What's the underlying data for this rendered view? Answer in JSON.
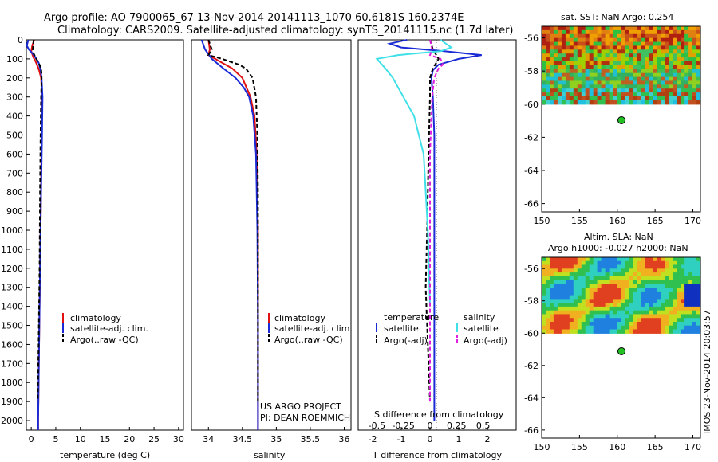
{
  "header": {
    "line1": "Argo profile: AO 7900065_67 13-Nov-2014 20141113_1070 60.6181S 160.2374E",
    "line2": "Climatology: CARS2009. Satellite-adjusted climatology: synTS_20141115.nc (1.7d later)"
  },
  "colors": {
    "climatology": "#e01010",
    "satellite": "#1a2bd6",
    "argo": "#000000",
    "sat_salinity": "#40e0e8",
    "argo_salinity": "#e020e0"
  },
  "panels": {
    "temperature": {
      "xlabel": "temperature (deg C)",
      "legend": [
        "climatology",
        "satellite-adj. clim.",
        "Argo(..raw -QC)"
      ]
    },
    "salinity": {
      "xlabel": "salinity",
      "legend": [
        "climatology",
        "satellite-adj. clim.",
        "Argo(..raw -QC)"
      ],
      "note1": "US ARGO PROJECT",
      "note2": "PI: DEAN ROEMMICH"
    },
    "difference": {
      "xlabel": "T difference from climatology",
      "s_label": "S difference from climatology",
      "legend_t_title": "temperature",
      "legend_s_title": "salinity",
      "legend_t": [
        "satellite",
        "Argo(-adj)"
      ],
      "legend_s": [
        "satellite",
        "Argo(-adj)"
      ]
    },
    "sst_map": {
      "title": "sat. SST: NaN Argo: 0.254"
    },
    "sla_map": {
      "title1": "Altim. SLA: NaN",
      "title2": "Argo h1000: -0.027 h2000: NaN"
    }
  },
  "footer_stamp": "IMOS 23-Nov-2014 20:03:57",
  "chart_data": [
    {
      "type": "line",
      "name": "temperature",
      "xlim": [
        -1,
        31
      ],
      "ylim": [
        0,
        2050
      ],
      "y_reversed": true,
      "xticks": [
        0,
        5,
        10,
        15,
        20,
        25,
        30
      ],
      "yticks": [
        0,
        100,
        200,
        300,
        400,
        500,
        600,
        700,
        800,
        900,
        1000,
        1100,
        1200,
        1300,
        1400,
        1500,
        1600,
        1700,
        1800,
        1900,
        2000
      ],
      "series": [
        {
          "name": "climatology",
          "depth": [
            0,
            30,
            60,
            90,
            120,
            160,
            200,
            300,
            500,
            800,
            1200,
            1600,
            2000,
            2050
          ],
          "values": [
            0.6,
            0.2,
            0.0,
            0.4,
            1.0,
            1.6,
            2.0,
            2.2,
            2.1,
            2.0,
            1.8,
            1.6,
            1.4,
            1.4
          ]
        },
        {
          "name": "satellite-adj. clim.",
          "depth": [
            0,
            30,
            50,
            70,
            90,
            120,
            160,
            200,
            300,
            500,
            800,
            1200,
            1600,
            2000,
            2050
          ],
          "values": [
            -0.6,
            -0.9,
            -0.5,
            0.2,
            0.8,
            1.5,
            1.9,
            2.1,
            2.3,
            2.2,
            2.0,
            1.8,
            1.6,
            1.4,
            1.4
          ]
        },
        {
          "name": "Argo(..raw -QC)",
          "depth": [
            0,
            30,
            60,
            90,
            120,
            150,
            180,
            220,
            300,
            500,
            800,
            1200,
            1600,
            1900
          ],
          "values": [
            0.5,
            0.4,
            0.3,
            0.8,
            1.5,
            2.0,
            2.1,
            2.1,
            2.0,
            1.9,
            1.8,
            1.7,
            1.5,
            1.3
          ]
        }
      ]
    },
    {
      "type": "line",
      "name": "salinity",
      "xlim": [
        33.75,
        36.1
      ],
      "ylim": [
        0,
        2050
      ],
      "y_reversed": true,
      "xticks": [
        34,
        34.5,
        35,
        35.5,
        36
      ],
      "xtick_labels": [
        "34",
        "34.5",
        "35",
        "35.5",
        "36"
      ],
      "series": [
        {
          "name": "climatology",
          "depth": [
            0,
            50,
            80,
            100,
            150,
            200,
            300,
            400,
            600,
            1000,
            1500,
            2000,
            2050
          ],
          "values": [
            34.0,
            34.02,
            34.0,
            34.1,
            34.35,
            34.5,
            34.62,
            34.68,
            34.71,
            34.73,
            34.73,
            34.73,
            34.73
          ]
        },
        {
          "name": "satellite-adj. clim.",
          "depth": [
            0,
            50,
            100,
            150,
            200,
            250,
            300,
            400,
            600,
            1000,
            1500,
            2000,
            2050
          ],
          "values": [
            33.9,
            33.95,
            34.05,
            34.22,
            34.4,
            34.52,
            34.6,
            34.66,
            34.7,
            34.72,
            34.73,
            34.73,
            34.73
          ]
        },
        {
          "name": "Argo(..raw -QC)",
          "depth": [
            0,
            50,
            80,
            100,
            130,
            150,
            200,
            300,
            500,
            800,
            1200,
            1600,
            1900
          ],
          "values": [
            34.0,
            34.05,
            34.0,
            34.2,
            34.45,
            34.55,
            34.65,
            34.7,
            34.72,
            34.73,
            34.73,
            34.73,
            34.73
          ]
        }
      ]
    },
    {
      "type": "line",
      "name": "difference",
      "xlim": [
        -2.5,
        3.0
      ],
      "ylim": [
        0,
        2050
      ],
      "y_reversed": true,
      "xticks": [
        -2,
        -1,
        0,
        1,
        2
      ],
      "s_ticks": [
        -0.5,
        -0.25,
        0,
        0.25,
        0.5
      ],
      "s_tick_labels": [
        "-0.5",
        "-0.25",
        "0",
        "0.25",
        "0.5"
      ],
      "series": [
        {
          "name": "T satellite",
          "depth": [
            0,
            20,
            40,
            60,
            80,
            100,
            130,
            160,
            200,
            300,
            500,
            800,
            1200,
            1600,
            2000
          ],
          "values": [
            -0.8,
            -1.4,
            -1.0,
            0.5,
            1.8,
            1.0,
            0.3,
            0.1,
            0.05,
            0.1,
            0.15,
            0.15,
            0.15,
            0.15,
            0.15
          ]
        },
        {
          "name": "T Argo(-adj)",
          "depth": [
            0,
            50,
            100,
            150,
            200,
            300,
            600,
            1000,
            1300,
            1500,
            1700,
            1900
          ],
          "values": [
            0.0,
            0.1,
            0.3,
            0.1,
            0.0,
            0.0,
            -0.05,
            -0.1,
            -0.15,
            -0.1,
            -0.05,
            0.0
          ]
        },
        {
          "name": "S satellite",
          "depth": [
            0,
            40,
            60,
            80,
            100,
            150,
            200,
            300,
            400,
            600,
            1000,
            1400
          ],
          "values": [
            0.1,
            0.2,
            0.1,
            -0.3,
            -0.5,
            -0.42,
            -0.35,
            -0.25,
            -0.15,
            -0.06,
            -0.02,
            0.0
          ]
        },
        {
          "name": "S Argo(-adj)",
          "depth": [
            0,
            50,
            80,
            100,
            130,
            150,
            200,
            300,
            600,
            1000,
            1500,
            1900
          ],
          "values": [
            0.0,
            0.02,
            0.0,
            0.1,
            0.12,
            0.08,
            0.04,
            0.02,
            0.0,
            0.0,
            0.0,
            0.0
          ]
        }
      ]
    },
    {
      "type": "heatmap",
      "name": "sat SST map",
      "xlim": [
        150,
        171
      ],
      "ylim": [
        -66.5,
        -55.3
      ],
      "xticks": [
        150,
        155,
        160,
        165,
        170
      ],
      "yticks": [
        -56,
        -58,
        -60,
        -62,
        -64,
        -66
      ],
      "data_extent": {
        "lon": [
          150,
          171
        ],
        "lat": [
          -60,
          -55.3
        ]
      },
      "argo_position": {
        "lon": 160.24,
        "lat": -60.62
      }
    },
    {
      "type": "heatmap",
      "name": "altim SLA map",
      "xlim": [
        150,
        171
      ],
      "ylim": [
        -66.5,
        -55.3
      ],
      "xticks": [
        150,
        155,
        160,
        165,
        170
      ],
      "yticks": [
        -56,
        -58,
        -60,
        -62,
        -64,
        -66
      ],
      "data_extent": {
        "lon": [
          150,
          171
        ],
        "lat": [
          -60,
          -55.3
        ]
      },
      "argo_position": {
        "lon": 160.24,
        "lat": -60.62
      }
    }
  ]
}
